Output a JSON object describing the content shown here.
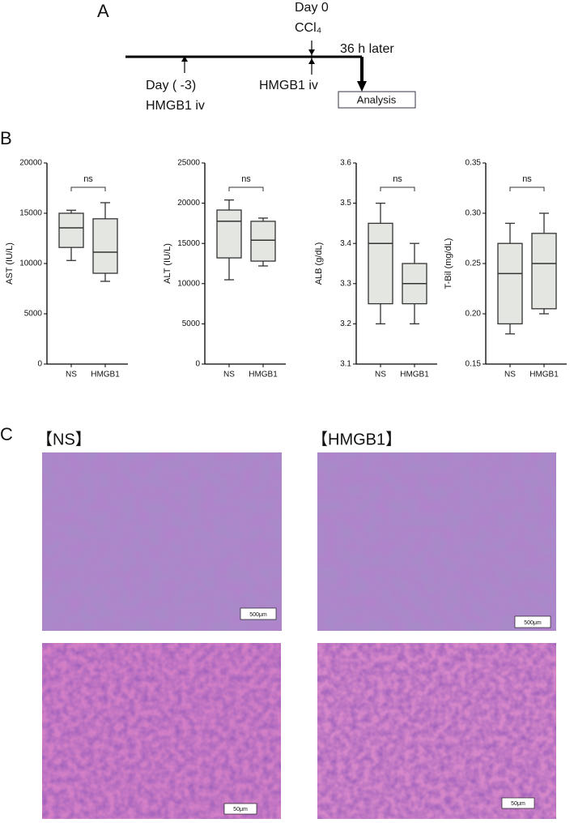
{
  "panel_a": {
    "label": "A",
    "day0": "Day 0",
    "ccl4": "CCl₄",
    "later": "36 h later",
    "day_minus3": "Day ( -3)",
    "hmgb1_iv_1": "HMGB1 iv",
    "hmgb1_iv_2": "HMGB1 iv",
    "analysis": "Analysis"
  },
  "panel_b": {
    "label": "B"
  },
  "chart_data": [
    {
      "type": "box",
      "ylabel": "AST (IU/L)",
      "annotation": "ns",
      "categories": [
        "NS",
        "HMGB1"
      ],
      "boxes": [
        {
          "min": 10300,
          "q1": 11600,
          "median": 13550,
          "q3": 15000,
          "max": 15300
        },
        {
          "min": 8230,
          "q1": 9030,
          "median": 11130,
          "q3": 14450,
          "max": 16050
        }
      ],
      "ylim": [
        0,
        20000
      ],
      "yticks": [
        0,
        5000,
        10000,
        15000,
        20000
      ],
      "color": "#e3e6e1"
    },
    {
      "type": "box",
      "ylabel": "ALT (IU/L)",
      "annotation": "ns",
      "categories": [
        "NS",
        "HMGB1"
      ],
      "boxes": [
        {
          "min": 10480,
          "q1": 13200,
          "median": 17750,
          "q3": 19150,
          "max": 20400
        },
        {
          "min": 12200,
          "q1": 12800,
          "median": 15400,
          "q3": 17750,
          "max": 18150
        }
      ],
      "ylim": [
        0,
        25000
      ],
      "yticks": [
        0,
        5000,
        10000,
        15000,
        20000,
        25000
      ],
      "color": "#e3e6e1"
    },
    {
      "type": "box",
      "ylabel": "ALB (g/dL)",
      "annotation": "ns",
      "categories": [
        "NS",
        "HMGB1"
      ],
      "boxes": [
        {
          "min": 3.2,
          "q1": 3.25,
          "median": 3.4,
          "q3": 3.45,
          "max": 3.5
        },
        {
          "min": 3.2,
          "q1": 3.25,
          "median": 3.3,
          "q3": 3.35,
          "max": 3.4
        }
      ],
      "ylim": [
        3.1,
        3.6
      ],
      "yticks": [
        3.1,
        3.2,
        3.3,
        3.4,
        3.5,
        3.6
      ],
      "color": "#e3e6e1"
    },
    {
      "type": "box",
      "ylabel": "T-Bil (mg/dL)",
      "annotation": "ns",
      "categories": [
        "NS",
        "HMGB1"
      ],
      "boxes": [
        {
          "min": 0.18,
          "q1": 0.19,
          "median": 0.24,
          "q3": 0.27,
          "max": 0.29
        },
        {
          "min": 0.2,
          "q1": 0.205,
          "median": 0.25,
          "q3": 0.28,
          "max": 0.3
        }
      ],
      "ylim": [
        0.15,
        0.35
      ],
      "yticks": [
        0.15,
        {
          "value": 0.2,
          "label": "0.20"
        },
        0.25,
        {
          "value": 0.3,
          "label": "0.30"
        },
        0.35
      ],
      "color": "#e3e6e1"
    }
  ],
  "panel_c": {
    "label": "C",
    "ns_title": "【NS】",
    "hmgb1_title": "【HMGB1】",
    "scale_ns_low": "500μm",
    "scale_hmgb1_low": "500μm",
    "scale_ns_high": "50μm",
    "scale_hmgb1_high": "50μm"
  }
}
